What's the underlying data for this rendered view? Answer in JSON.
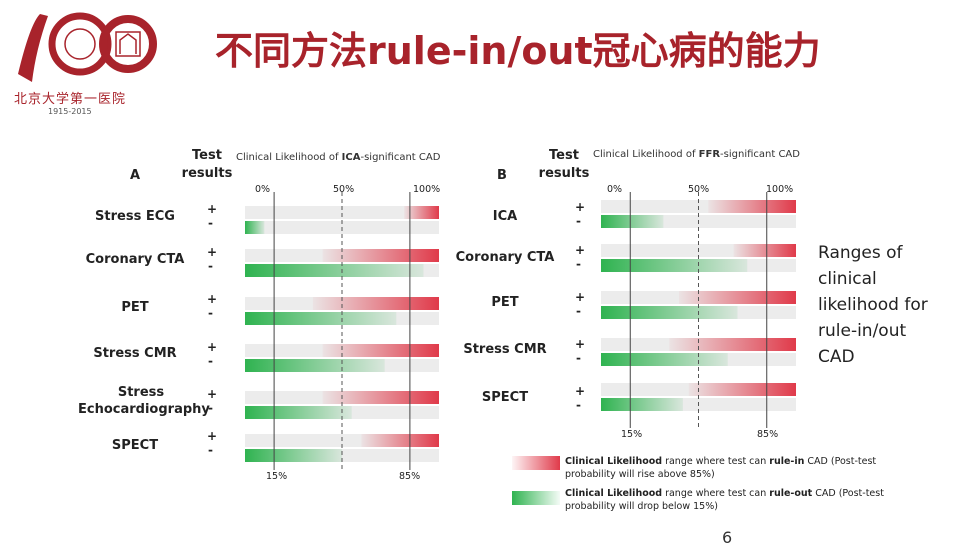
{
  "header": {
    "title": "不同方法rule-in/out冠心病的能力",
    "logo_text": "北京大学第一医院",
    "logo_years": "1915-2015",
    "logo_numerals": "100"
  },
  "panels": [
    {
      "letter": "A",
      "test_results_label": "Test\nresults",
      "likelihood_prefix": "Clinical Likelihood of ",
      "likelihood_bold": "ICA",
      "likelihood_suffix": "-significant CAD",
      "top_ticks": [
        "0%",
        "50%",
        "100%"
      ],
      "bottom_ticks": [
        "15%",
        "85%"
      ],
      "rows": [
        {
          "label": "Stress ECG",
          "plus": "+",
          "minus": "-",
          "rule_in_start_pct": 82,
          "rule_out_end_pct": 10
        },
        {
          "label": "Coronary CTA",
          "plus": "+",
          "minus": "-",
          "rule_in_start_pct": 40,
          "rule_out_end_pct": 92
        },
        {
          "label": "PET",
          "plus": "+",
          "minus": "-",
          "rule_in_start_pct": 35,
          "rule_out_end_pct": 78
        },
        {
          "label": "Stress CMR",
          "plus": "+",
          "minus": "-",
          "rule_in_start_pct": 40,
          "rule_out_end_pct": 72
        },
        {
          "label": "Stress Echocardiography",
          "plus": "+",
          "minus": "-",
          "rule_in_start_pct": 40,
          "rule_out_end_pct": 55
        },
        {
          "label": "SPECT",
          "plus": "+",
          "minus": "-",
          "rule_in_start_pct": 60,
          "rule_out_end_pct": 50
        }
      ]
    },
    {
      "letter": "B",
      "test_results_label": "Test\nresults",
      "likelihood_prefix": "Clinical Likelihood of ",
      "likelihood_bold": "FFR",
      "likelihood_suffix": "-significant CAD",
      "top_ticks": [
        "0%",
        "50%",
        "100%"
      ],
      "bottom_ticks": [
        "15%",
        "85%"
      ],
      "rows": [
        {
          "label": "ICA",
          "plus": "+",
          "minus": "-",
          "rule_in_start_pct": 55,
          "rule_out_end_pct": 32
        },
        {
          "label": "Coronary CTA",
          "plus": "+",
          "minus": "-",
          "rule_in_start_pct": 68,
          "rule_out_end_pct": 75
        },
        {
          "label": "PET",
          "plus": "+",
          "minus": "-",
          "rule_in_start_pct": 40,
          "rule_out_end_pct": 70
        },
        {
          "label": "Stress CMR",
          "plus": "+",
          "minus": "-",
          "rule_in_start_pct": 35,
          "rule_out_end_pct": 65
        },
        {
          "label": "SPECT",
          "plus": "+",
          "minus": "-",
          "rule_in_start_pct": 45,
          "rule_out_end_pct": 42
        }
      ]
    }
  ],
  "side_note": "Ranges of\nclinical\nlikelihood for\nrule-in/out\nCAD",
  "legend": [
    {
      "bold": "Clinical Likelihood",
      "text1": " range where test can ",
      "bold2": "rule-in",
      "text2": " CAD (Post-test probability will rise above 85%)",
      "color": "#e03a4a"
    },
    {
      "bold": "Clinical Likelihood",
      "text1": " range where test can ",
      "bold2": "rule-out",
      "text2": " CAD (Post-test probability will drop below 15%)",
      "color": "#2fb350"
    }
  ],
  "footer": {
    "page_number": "6"
  },
  "colors": {
    "brand": "#a8232b",
    "rule_in": "#e03a4a",
    "rule_out": "#2fb350",
    "track": "#ececec"
  }
}
